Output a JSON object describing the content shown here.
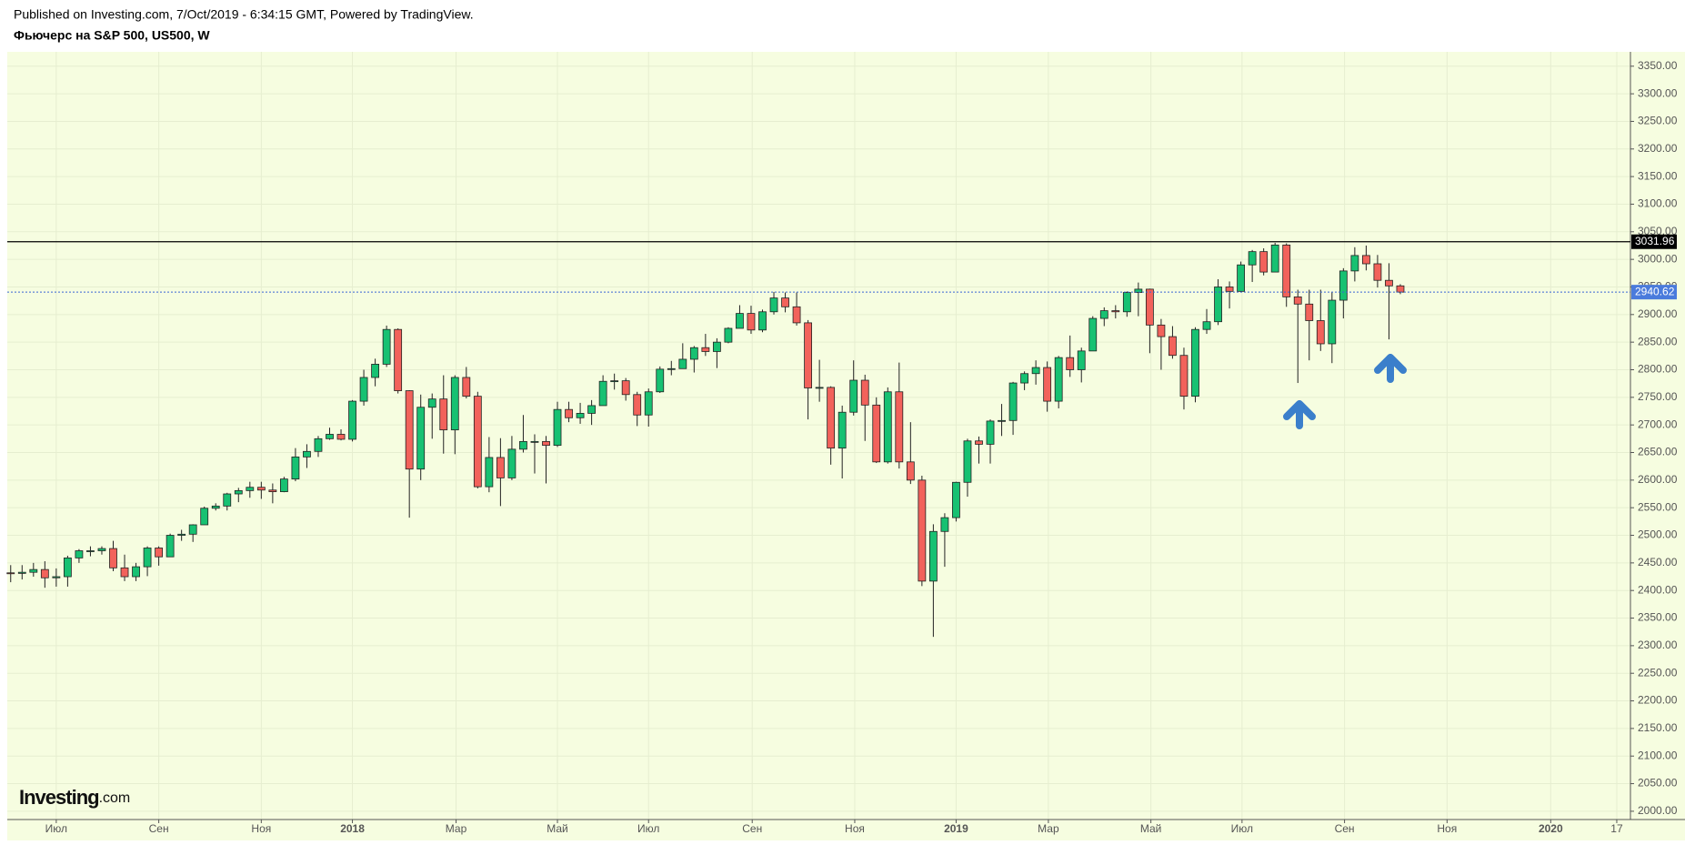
{
  "header": {
    "published": "Published on Investing.com, 7/Oct/2019 - 6:34:15 GMT, Powered by TradingView.",
    "title": "Фьючерс на S&P 500, US500, W"
  },
  "watermark": {
    "brand": "Investing",
    "suffix": ".com"
  },
  "chart_data": {
    "type": "candlestick",
    "up_color": "#17c172",
    "down_color": "#f2625b",
    "grid": true,
    "xlim": [
      -0.3,
      142.2
    ],
    "xticks": [
      {
        "value": 4,
        "label": "Июл"
      },
      {
        "value": 13,
        "label": "Сен"
      },
      {
        "value": 22,
        "label": "Ноя"
      },
      {
        "value": 30,
        "label": "2018"
      },
      {
        "value": 39.1,
        "label": "Мар"
      },
      {
        "value": 48,
        "label": "Май"
      },
      {
        "value": 56,
        "label": "Июл"
      },
      {
        "value": 65.1,
        "label": "Сен"
      },
      {
        "value": 74.1,
        "label": "Ноя"
      },
      {
        "value": 83,
        "label": "2019"
      },
      {
        "value": 91.1,
        "label": "Мар"
      },
      {
        "value": 100.1,
        "label": "Май"
      },
      {
        "value": 108.1,
        "label": "Июл"
      },
      {
        "value": 117.1,
        "label": "Сен"
      },
      {
        "value": 126.1,
        "label": "Ноя"
      },
      {
        "value": 135.2,
        "label": "2020"
      },
      {
        "value": 141,
        "label": "17"
      }
    ],
    "ylim": [
      1985,
      3376
    ],
    "yticks": [
      {
        "value": 2000,
        "label": "2000.00"
      },
      {
        "value": 2050,
        "label": "2050.00"
      },
      {
        "value": 2100,
        "label": "2100.00"
      },
      {
        "value": 2150,
        "label": "2150.00"
      },
      {
        "value": 2200,
        "label": "2200.00"
      },
      {
        "value": 2250,
        "label": "2250.00"
      },
      {
        "value": 2300,
        "label": "2300.00"
      },
      {
        "value": 2350,
        "label": "2350.00"
      },
      {
        "value": 2400,
        "label": "2400.00"
      },
      {
        "value": 2450,
        "label": "2450.00"
      },
      {
        "value": 2500,
        "label": "2500.00"
      },
      {
        "value": 2550,
        "label": "2550.00"
      },
      {
        "value": 2600,
        "label": "2600.00"
      },
      {
        "value": 2650,
        "label": "2650.00"
      },
      {
        "value": 2700,
        "label": "2700.00"
      },
      {
        "value": 2750,
        "label": "2750.00"
      },
      {
        "value": 2800,
        "label": "2800.00"
      },
      {
        "value": 2850,
        "label": "2850.00"
      },
      {
        "value": 2900,
        "label": "2900.00"
      },
      {
        "value": 2950,
        "label": "2950.00"
      },
      {
        "value": 3000,
        "label": "3000.00"
      },
      {
        "value": 3050,
        "label": "3050.00"
      },
      {
        "value": 3100,
        "label": "3100.00"
      },
      {
        "value": 3150,
        "label": "3150.00"
      },
      {
        "value": 3200,
        "label": "3200.00"
      },
      {
        "value": 3250,
        "label": "3250.00"
      },
      {
        "value": 3300,
        "label": "3300.00"
      },
      {
        "value": 3350,
        "label": "3350.00"
      }
    ],
    "reference_price": 3031.96,
    "last_price": 2940.62,
    "open": [
      2432,
      2431,
      2433,
      2438,
      2423,
      2425,
      2459,
      2472,
      2472,
      2476,
      2441,
      2425,
      2443,
      2477,
      2461,
      2500,
      2502,
      2519,
      2549,
      2553,
      2575,
      2581,
      2587,
      2582,
      2579,
      2602,
      2642,
      2652,
      2675,
      2683,
      2674,
      2743,
      2786,
      2810,
      2873,
      2762,
      2620,
      2732,
      2747,
      2691,
      2786,
      2752,
      2588,
      2641,
      2604,
      2656,
      2670,
      2670,
      2663,
      2728,
      2713,
      2721,
      2735,
      2779,
      2780,
      2755,
      2718,
      2760,
      2801,
      2802,
      2819,
      2840,
      2833,
      2850,
      2875,
      2902,
      2872,
      2905,
      2930,
      2914,
      2885,
      2767,
      2768,
      2658,
      2723,
      2781,
      2736,
      2633,
      2760,
      2633,
      2600,
      2417,
      2507,
      2532,
      2596,
      2671,
      2665,
      2707,
      2708,
      2776,
      2793,
      2804,
      2743,
      2822,
      2800,
      2834,
      2893,
      2907,
      2905,
      2940,
      2946,
      2881,
      2860,
      2826,
      2752,
      2873,
      2887,
      2950,
      2942,
      2990,
      3014,
      2977,
      3026,
      2932,
      2919,
      2889,
      2847,
      2926,
      2979,
      3007,
      2992,
      2962,
      2952
    ],
    "high": [
      2446,
      2446,
      2450,
      2453,
      2440,
      2463,
      2475,
      2480,
      2480,
      2490,
      2465,
      2450,
      2480,
      2480,
      2503,
      2510,
      2520,
      2552,
      2558,
      2577,
      2586,
      2597,
      2597,
      2594,
      2606,
      2658,
      2665,
      2680,
      2695,
      2692,
      2745,
      2800,
      2820,
      2880,
      2875,
      2763,
      2755,
      2757,
      2790,
      2790,
      2805,
      2760,
      2678,
      2676,
      2680,
      2718,
      2683,
      2680,
      2742,
      2742,
      2740,
      2745,
      2790,
      2793,
      2785,
      2760,
      2766,
      2806,
      2816,
      2848,
      2843,
      2865,
      2857,
      2877,
      2917,
      2916,
      2909,
      2941,
      2940,
      2940,
      2890,
      2818,
      2770,
      2735,
      2817,
      2791,
      2750,
      2768,
      2813,
      2705,
      2608,
      2520,
      2540,
      2597,
      2675,
      2679,
      2710,
      2738,
      2778,
      2797,
      2817,
      2815,
      2825,
      2862,
      2840,
      2897,
      2913,
      2917,
      2942,
      2958,
      2947,
      2892,
      2879,
      2840,
      2877,
      2910,
      2964,
      2960,
      2996,
      3017,
      3020,
      3030,
      3029,
      2945,
      2945,
      2945,
      2940,
      2984,
      3022,
      3025,
      3008,
      2993,
      2955
    ],
    "low": [
      2415,
      2420,
      2425,
      2405,
      2407,
      2407,
      2450,
      2462,
      2465,
      2435,
      2417,
      2417,
      2426,
      2445,
      2461,
      2490,
      2488,
      2519,
      2545,
      2545,
      2560,
      2568,
      2566,
      2558,
      2578,
      2598,
      2622,
      2642,
      2673,
      2672,
      2670,
      2735,
      2770,
      2805,
      2757,
      2532,
      2600,
      2675,
      2648,
      2647,
      2748,
      2585,
      2578,
      2553,
      2600,
      2650,
      2612,
      2594,
      2660,
      2705,
      2702,
      2700,
      2735,
      2764,
      2744,
      2698,
      2697,
      2758,
      2790,
      2802,
      2795,
      2825,
      2803,
      2848,
      2875,
      2865,
      2868,
      2900,
      2904,
      2880,
      2710,
      2742,
      2628,
      2603,
      2717,
      2671,
      2631,
      2630,
      2621,
      2593,
      2408,
      2316,
      2443,
      2525,
      2570,
      2630,
      2630,
      2680,
      2682,
      2763,
      2773,
      2724,
      2730,
      2787,
      2777,
      2834,
      2879,
      2893,
      2896,
      2897,
      2830,
      2800,
      2820,
      2728,
      2741,
      2865,
      2881,
      2911,
      2940,
      2959,
      2971,
      2977,
      2914,
      2776,
      2817,
      2834,
      2812,
      2893,
      2960,
      2980,
      2949,
      2855,
      2937
    ],
    "close": [
      2431,
      2433,
      2438,
      2423,
      2425,
      2459,
      2472,
      2472,
      2476,
      2441,
      2425,
      2443,
      2477,
      2461,
      2500,
      2502,
      2519,
      2549,
      2553,
      2575,
      2581,
      2587,
      2582,
      2579,
      2602,
      2642,
      2652,
      2675,
      2683,
      2674,
      2743,
      2786,
      2810,
      2873,
      2762,
      2620,
      2732,
      2747,
      2691,
      2786,
      2752,
      2588,
      2641,
      2604,
      2656,
      2670,
      2670,
      2663,
      2728,
      2713,
      2721,
      2735,
      2779,
      2780,
      2755,
      2718,
      2760,
      2801,
      2802,
      2819,
      2840,
      2833,
      2850,
      2875,
      2902,
      2872,
      2905,
      2930,
      2914,
      2885,
      2767,
      2768,
      2658,
      2723,
      2781,
      2736,
      2633,
      2760,
      2633,
      2600,
      2417,
      2507,
      2532,
      2596,
      2671,
      2665,
      2707,
      2708,
      2776,
      2793,
      2804,
      2743,
      2822,
      2800,
      2834,
      2893,
      2907,
      2905,
      2940,
      2946,
      2881,
      2860,
      2826,
      2752,
      2873,
      2887,
      2950,
      2942,
      2990,
      3014,
      2977,
      3026,
      2932,
      2919,
      2889,
      2847,
      2926,
      2979,
      3007,
      2992,
      2962,
      2952,
      2940.62
    ]
  }
}
